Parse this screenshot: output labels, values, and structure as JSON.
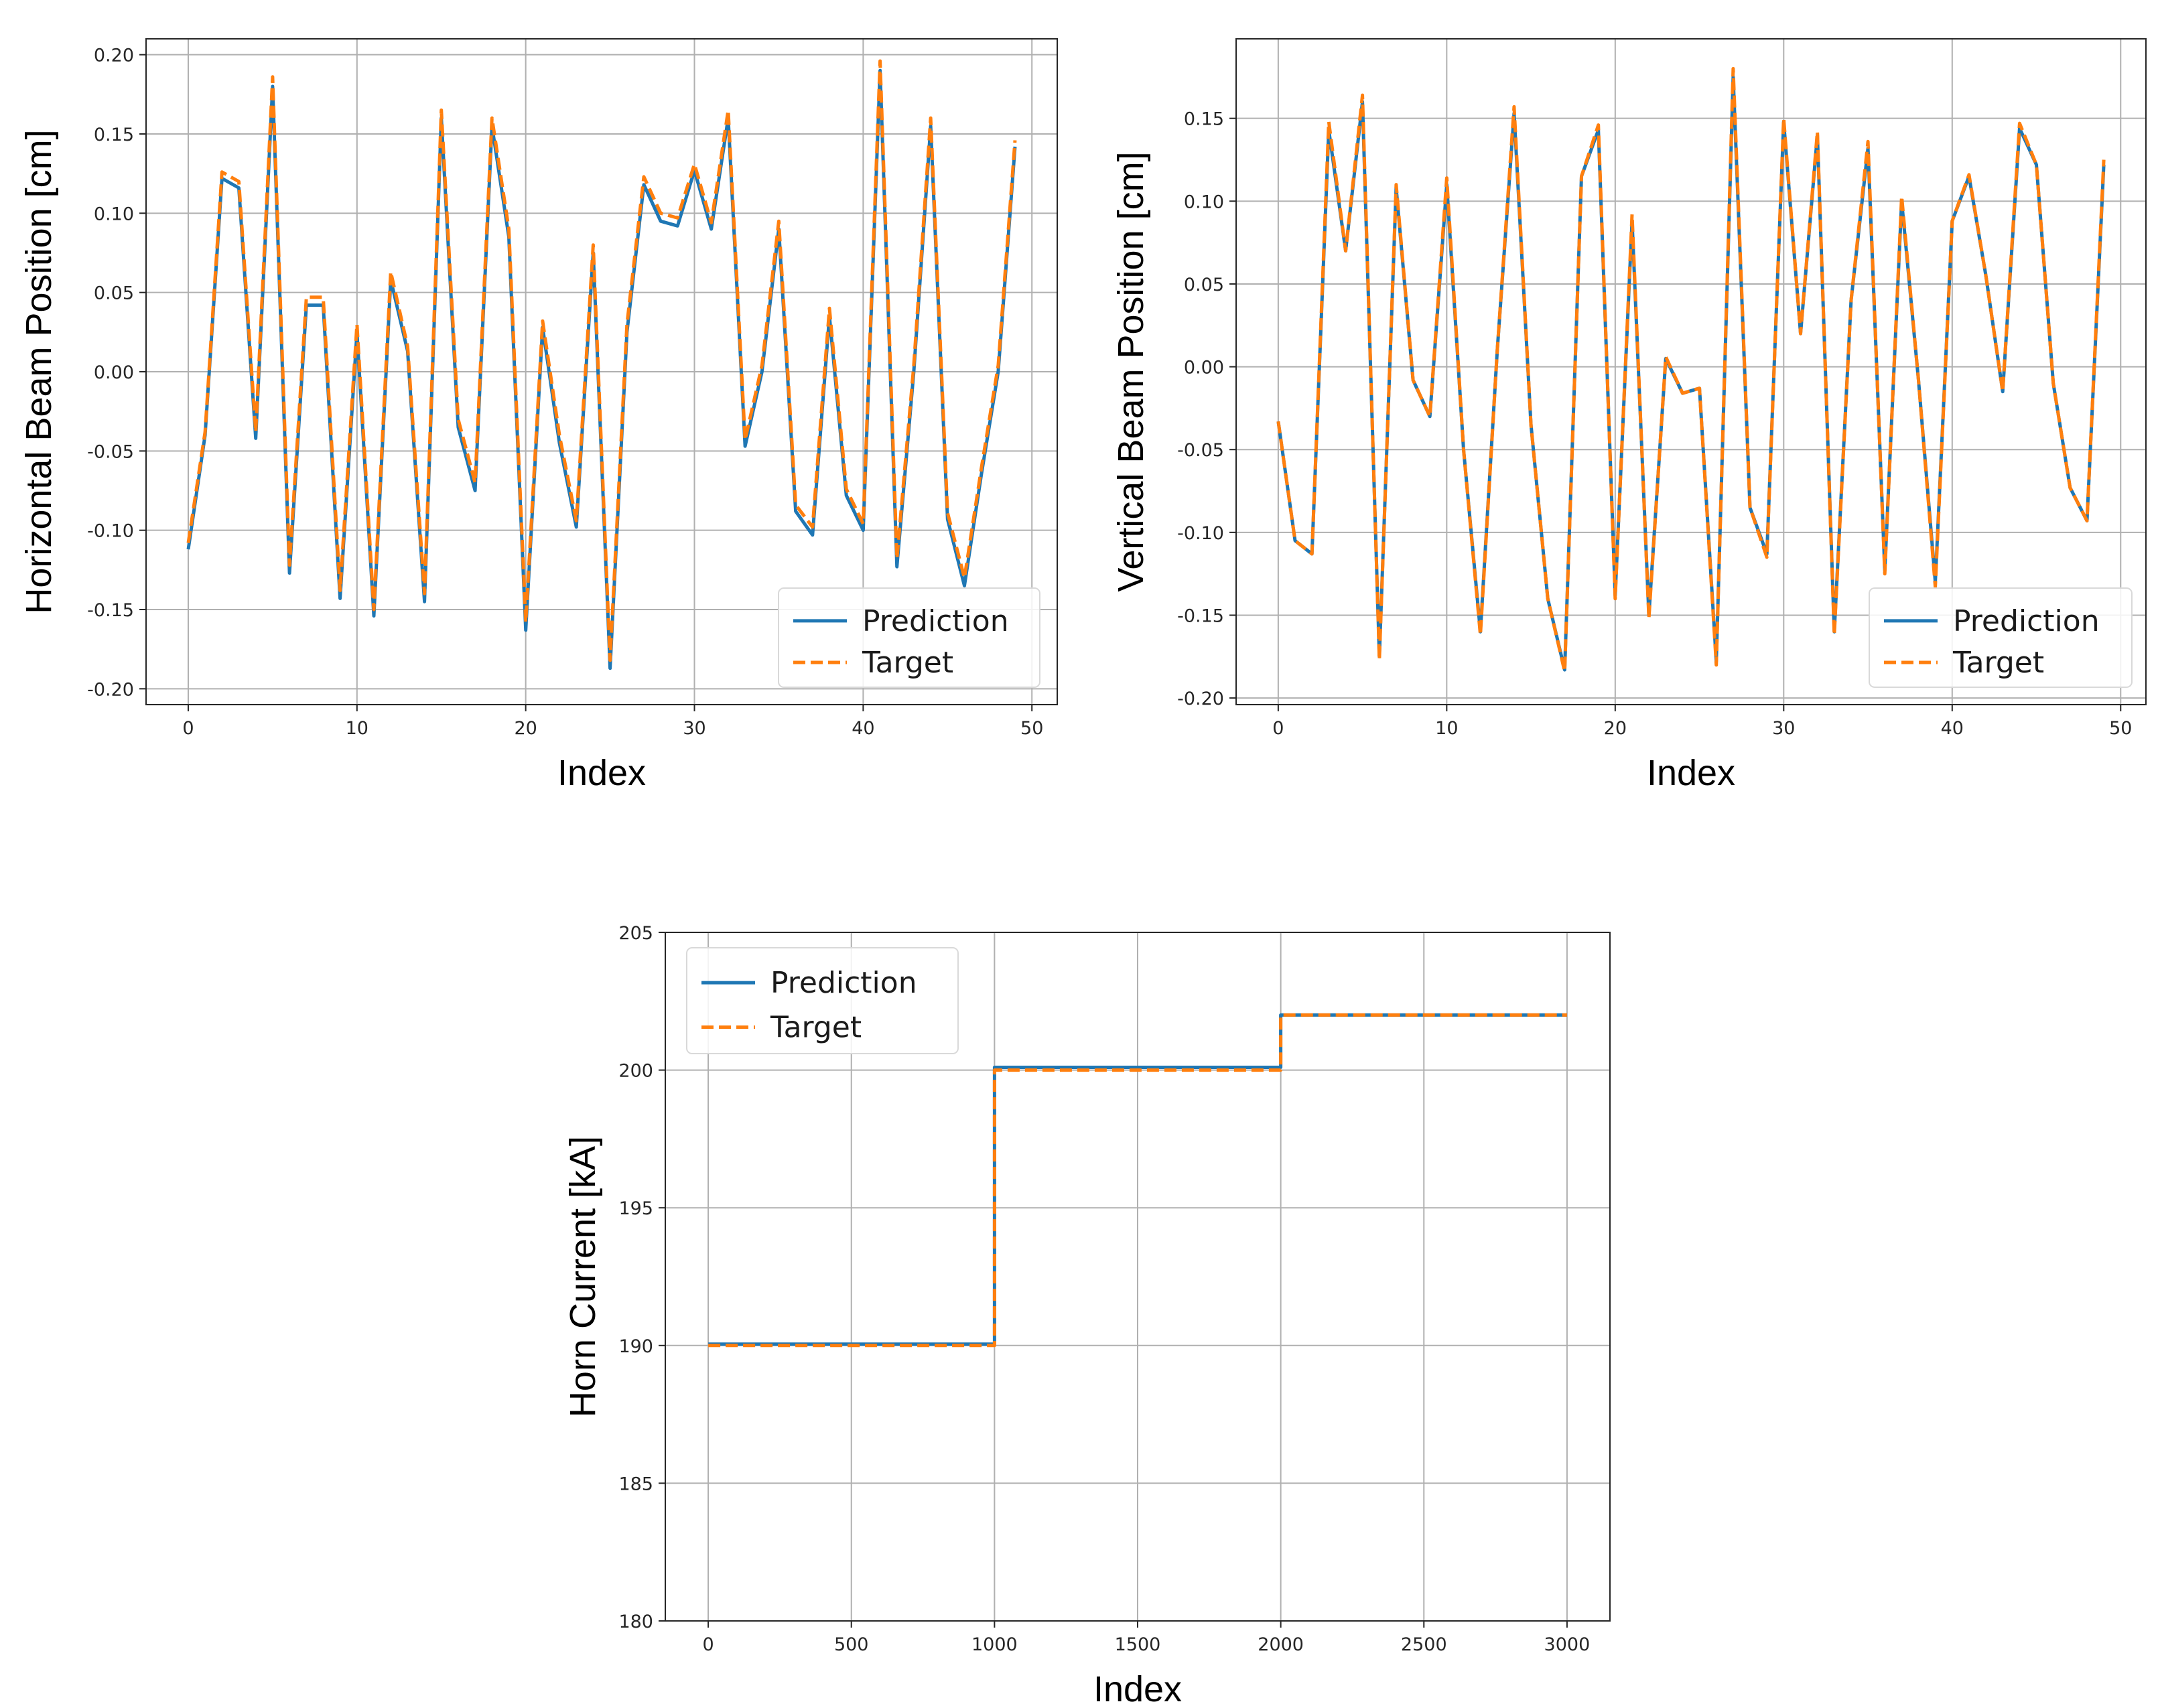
{
  "colors": {
    "prediction": "#1f77b4",
    "target": "#ff7f0e",
    "grid": "#b0b0b0",
    "axes": "#262626"
  },
  "chart_data": [
    {
      "type": "line",
      "xlabel": "Index",
      "ylabel": "Horizontal Beam Position [cm]",
      "xlim": [
        -2.5,
        51.5
      ],
      "ylim": [
        -0.21,
        0.21
      ],
      "xticks": [
        0,
        10,
        20,
        30,
        40,
        50
      ],
      "xtick_labels": [
        "0",
        "10",
        "20",
        "30",
        "40",
        "50"
      ],
      "yticks": [
        -0.2,
        -0.15,
        -0.1,
        -0.05,
        0.0,
        0.05,
        0.1,
        0.15,
        0.2
      ],
      "ytick_labels": [
        "-0.20",
        "-0.15",
        "-0.10",
        "-0.05",
        "0.00",
        "0.05",
        "0.10",
        "0.15",
        "0.20"
      ],
      "grid": true,
      "legend_position": "lower-right",
      "series": [
        {
          "name": "Prediction",
          "style": "solid",
          "values": [
            -0.112,
            -0.04,
            0.122,
            0.116,
            -0.042,
            0.18,
            -0.127,
            0.042,
            0.042,
            -0.143,
            0.025,
            -0.154,
            0.058,
            0.013,
            -0.145,
            0.16,
            -0.035,
            -0.075,
            0.155,
            0.085,
            -0.163,
            0.028,
            -0.045,
            -0.098,
            0.075,
            -0.187,
            0.025,
            0.118,
            0.095,
            0.092,
            0.127,
            0.09,
            0.16,
            -0.047,
            0.0,
            0.09,
            -0.088,
            -0.103,
            0.035,
            -0.078,
            -0.1,
            0.19,
            -0.123,
            0.0,
            0.155,
            -0.093,
            -0.135,
            -0.065,
            0.0,
            0.142
          ]
        },
        {
          "name": "Target",
          "style": "dashed",
          "values": [
            -0.108,
            -0.038,
            0.126,
            0.12,
            -0.038,
            0.186,
            -0.122,
            0.047,
            0.047,
            -0.138,
            0.03,
            -0.15,
            0.063,
            0.016,
            -0.14,
            0.165,
            -0.03,
            -0.07,
            0.16,
            0.09,
            -0.158,
            0.032,
            -0.04,
            -0.094,
            0.08,
            -0.182,
            0.03,
            0.123,
            0.1,
            0.097,
            0.131,
            0.094,
            0.165,
            -0.043,
            0.004,
            0.095,
            -0.084,
            -0.098,
            0.04,
            -0.074,
            -0.096,
            0.196,
            -0.118,
            0.004,
            0.16,
            -0.089,
            -0.13,
            -0.061,
            0.004,
            0.146
          ]
        }
      ],
      "legend": [
        "Prediction",
        "Target"
      ]
    },
    {
      "type": "line",
      "xlabel": "Index",
      "ylabel": "Vertical Beam Position [cm]",
      "xlim": [
        -2.5,
        51.5
      ],
      "ylim": [
        -0.204,
        0.198
      ],
      "xticks": [
        0,
        10,
        20,
        30,
        40,
        50
      ],
      "xtick_labels": [
        "0",
        "10",
        "20",
        "30",
        "40",
        "50"
      ],
      "yticks": [
        -0.2,
        -0.15,
        -0.1,
        -0.05,
        0.0,
        0.05,
        0.1,
        0.15
      ],
      "ytick_labels": [
        "-0.20",
        "-0.15",
        "-0.10",
        "-0.05",
        "0.00",
        "0.05",
        "0.10",
        "0.15"
      ],
      "grid": true,
      "legend_position": "lower-right",
      "series": [
        {
          "name": "Prediction",
          "style": "solid",
          "values": [
            -0.033,
            -0.105,
            -0.113,
            0.143,
            0.07,
            0.16,
            -0.175,
            0.108,
            -0.008,
            -0.03,
            0.11,
            -0.05,
            -0.16,
            0.01,
            0.153,
            -0.035,
            -0.14,
            -0.183,
            0.115,
            0.143,
            -0.138,
            0.088,
            -0.15,
            0.005,
            -0.016,
            -0.013,
            -0.178,
            0.175,
            -0.085,
            -0.113,
            0.148,
            0.02,
            0.14,
            -0.16,
            0.04,
            0.132,
            -0.123,
            0.1,
            -0.008,
            -0.13,
            0.088,
            0.115,
            0.055,
            -0.015,
            0.144,
            0.122,
            -0.01,
            -0.073,
            -0.093,
            0.122
          ]
        },
        {
          "name": "Target",
          "style": "dashed",
          "values": [
            -0.033,
            -0.105,
            -0.113,
            0.148,
            0.07,
            0.164,
            -0.177,
            0.11,
            -0.008,
            -0.03,
            0.114,
            -0.05,
            -0.162,
            0.01,
            0.157,
            -0.035,
            -0.14,
            -0.184,
            0.115,
            0.146,
            -0.14,
            0.092,
            -0.152,
            0.006,
            -0.016,
            -0.013,
            -0.18,
            0.18,
            -0.085,
            -0.115,
            0.15,
            0.02,
            0.142,
            -0.162,
            0.04,
            0.136,
            -0.125,
            0.103,
            -0.008,
            -0.133,
            0.088,
            0.116,
            0.055,
            -0.015,
            0.147,
            0.122,
            -0.01,
            -0.073,
            -0.093,
            0.125
          ]
        }
      ],
      "legend": [
        "Prediction",
        "Target"
      ]
    },
    {
      "type": "line",
      "xlabel": "Index",
      "ylabel": "Horn Current [kA]",
      "xlim": [
        -150,
        3150
      ],
      "ylim": [
        180,
        205
      ],
      "xticks": [
        0,
        500,
        1000,
        1500,
        2000,
        2500,
        3000
      ],
      "xtick_labels": [
        "0",
        "500",
        "1000",
        "1500",
        "2000",
        "2500",
        "3000"
      ],
      "yticks": [
        180,
        185,
        190,
        195,
        200,
        205
      ],
      "ytick_labels": [
        "180",
        "185",
        "190",
        "195",
        "200",
        "205"
      ],
      "grid": true,
      "legend_position": "upper-left",
      "series": [
        {
          "name": "Prediction",
          "style": "solid",
          "segments": [
            {
              "x_start": 0,
              "x_end": 1000,
              "level": 190.05
            },
            {
              "x_start": 1000,
              "x_end": 2000,
              "level": 200.1
            },
            {
              "x_start": 2000,
              "x_end": 3000,
              "level": 202.0
            }
          ]
        },
        {
          "name": "Target",
          "style": "dashed",
          "segments": [
            {
              "x_start": 0,
              "x_end": 1000,
              "level": 190.0
            },
            {
              "x_start": 1000,
              "x_end": 2000,
              "level": 200.0
            },
            {
              "x_start": 2000,
              "x_end": 3000,
              "level": 202.0
            }
          ]
        }
      ],
      "legend": [
        "Prediction",
        "Target"
      ]
    }
  ]
}
